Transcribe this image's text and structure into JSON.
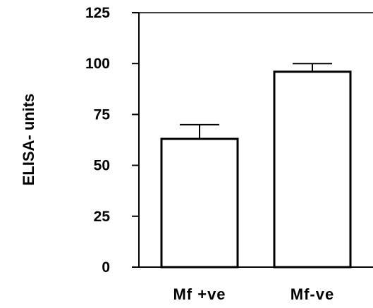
{
  "chart_data": {
    "type": "bar",
    "title": "",
    "xlabel": "",
    "ylabel": "ELISA- units",
    "ylim": [
      0,
      125
    ],
    "yticks": [
      0,
      25,
      50,
      75,
      100,
      125
    ],
    "ytick_labels": [
      "0",
      "25",
      "50",
      "75",
      "100",
      "125"
    ],
    "categories": [
      "Mf +ve",
      "Mf-ve"
    ],
    "values": [
      63,
      96
    ],
    "errors": [
      7,
      4
    ],
    "grid": false,
    "legend": "none",
    "colors": {
      "bar_fill": "#ffffff",
      "bar_stroke": "#000000",
      "axis": "#000000"
    }
  }
}
